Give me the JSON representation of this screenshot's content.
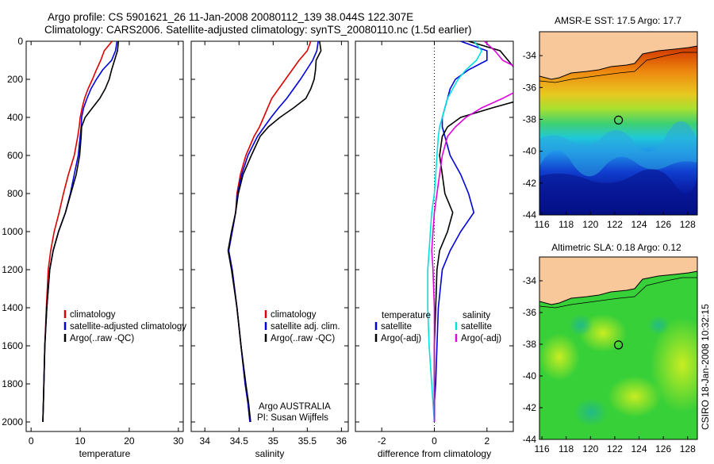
{
  "title_line1": "Argo profile: CS 5901621_26 11-Jan-2008 20080112_139 38.044S 122.307E",
  "title_line2": "Climatology: CARS2006. Satellite-adjusted climatology: synTS_20080110.nc (1.5d earlier)",
  "credit_agency": "Argo AUSTRALIA",
  "credit_pi": "PI: Susan Wijffels",
  "side_stamp": "CSIRO 18-Jan-2008 10:32:15",
  "colors": {
    "climatology": "#dd0000",
    "satellite": "#0000dd",
    "argo": "#000000",
    "satellite_diff": "#00e0e0",
    "argo_adj_diff": "#e000e0",
    "land": "#f8c79a"
  },
  "chart_data": [
    {
      "type": "line",
      "id": "temperature",
      "xlabel": "temperature",
      "ylabel": "",
      "xlim": [
        -1,
        31
      ],
      "ylim": [
        2050,
        0
      ],
      "xticks": [
        0,
        10,
        20,
        30
      ],
      "yticks": [
        0,
        200,
        400,
        600,
        800,
        1000,
        1200,
        1400,
        1600,
        1800,
        2000
      ],
      "legend": [
        "climatology",
        "satellite-adjusted climatology",
        "Argo(..raw -QC)"
      ],
      "series": [
        {
          "name": "climatology",
          "color": "#dd0000",
          "x": [
            16.5,
            14.9,
            14.2,
            13.3,
            12.5,
            11.6,
            10.9,
            10.4,
            10.0,
            9.8,
            9.5,
            8.8,
            7.6,
            6.6,
            5.7,
            4.7,
            4.0,
            3.5,
            3.1,
            2.8,
            2.6,
            2.5,
            2.4
          ],
          "y": [
            0,
            50,
            100,
            150,
            200,
            250,
            300,
            350,
            400,
            450,
            500,
            600,
            700,
            800,
            900,
            1000,
            1100,
            1200,
            1400,
            1600,
            1800,
            1900,
            2000
          ]
        },
        {
          "name": "satellite-adjusted climatology",
          "color": "#0000dd",
          "x": [
            17.5,
            17.2,
            16.4,
            14.6,
            13.3,
            12.2,
            11.4,
            10.7,
            10.3,
            10.2,
            10.0,
            9.6,
            8.8,
            8.0,
            7.0,
            5.6,
            4.5,
            3.8,
            3.2,
            2.8,
            2.6,
            2.5,
            2.4
          ],
          "y": [
            0,
            50,
            100,
            150,
            200,
            250,
            300,
            350,
            400,
            450,
            500,
            600,
            700,
            800,
            900,
            1000,
            1100,
            1200,
            1400,
            1600,
            1800,
            1900,
            2000
          ]
        },
        {
          "name": "Argo(..raw -QC)",
          "color": "#000000",
          "x": [
            17.8,
            17.6,
            17.0,
            16.4,
            15.9,
            15.1,
            14.0,
            12.5,
            11.0,
            10.3,
            10.2,
            9.9,
            9.2,
            8.1,
            7.0,
            5.6,
            4.5,
            3.8,
            3.2,
            2.8,
            2.6,
            2.5,
            2.4
          ],
          "y": [
            0,
            50,
            100,
            150,
            200,
            250,
            300,
            350,
            400,
            450,
            500,
            600,
            700,
            800,
            900,
            1000,
            1100,
            1200,
            1400,
            1600,
            1800,
            1900,
            2000
          ]
        }
      ]
    },
    {
      "type": "line",
      "id": "salinity",
      "xlabel": "salinity",
      "ylabel": "",
      "xlim": [
        33.8,
        36.1
      ],
      "ylim": [
        2050,
        0
      ],
      "xticks": [
        34,
        34.5,
        35,
        35.5,
        36
      ],
      "yticks": [
        0,
        200,
        400,
        600,
        800,
        1000,
        1200,
        1400,
        1600,
        1800,
        2000
      ],
      "legend": [
        "climatology",
        "satellite adj. clim.",
        "Argo(..raw -QC)"
      ],
      "series": [
        {
          "name": "climatology",
          "color": "#dd0000",
          "x": [
            35.55,
            35.5,
            35.38,
            35.28,
            35.18,
            35.08,
            34.98,
            34.92,
            34.86,
            34.8,
            34.72,
            34.6,
            34.52,
            34.47,
            34.45,
            34.4,
            34.35,
            34.4,
            34.47,
            34.53,
            34.59,
            34.63,
            34.66
          ],
          "y": [
            0,
            50,
            100,
            150,
            200,
            250,
            300,
            350,
            400,
            450,
            500,
            600,
            700,
            800,
            900,
            1000,
            1100,
            1200,
            1400,
            1600,
            1800,
            1900,
            2000
          ]
        },
        {
          "name": "satellite adj. clim.",
          "color": "#0000dd",
          "x": [
            35.66,
            35.64,
            35.58,
            35.49,
            35.4,
            35.3,
            35.2,
            35.08,
            34.97,
            34.87,
            34.77,
            34.63,
            34.54,
            34.48,
            34.45,
            34.4,
            34.35,
            34.4,
            34.47,
            34.53,
            34.59,
            34.63,
            34.66
          ],
          "y": [
            0,
            50,
            100,
            150,
            200,
            250,
            300,
            350,
            400,
            450,
            500,
            600,
            700,
            800,
            900,
            1000,
            1100,
            1200,
            1400,
            1600,
            1800,
            1900,
            2000
          ]
        },
        {
          "name": "Argo(..raw -QC)",
          "color": "#000000",
          "x": [
            35.68,
            35.7,
            35.63,
            35.62,
            35.6,
            35.55,
            35.48,
            35.3,
            35.1,
            34.93,
            34.81,
            34.68,
            34.56,
            34.49,
            34.45,
            34.39,
            34.34,
            34.39,
            34.47,
            34.53,
            34.6,
            34.64,
            34.67
          ],
          "y": [
            0,
            50,
            100,
            150,
            200,
            250,
            300,
            350,
            400,
            450,
            500,
            600,
            700,
            800,
            900,
            1000,
            1100,
            1200,
            1400,
            1600,
            1800,
            1900,
            2000
          ]
        }
      ]
    },
    {
      "type": "line",
      "id": "difference",
      "xlabel": "difference from climatology",
      "ylabel": "",
      "xlim": [
        -3,
        3
      ],
      "ylim": [
        2050,
        0
      ],
      "xticks": [
        -2,
        0,
        2
      ],
      "yticks": [
        0,
        200,
        400,
        600,
        800,
        1000,
        1200,
        1400,
        1600,
        1800,
        2000
      ],
      "legend_headers": [
        "temperature",
        "salinity"
      ],
      "legend": [
        "satellite",
        "Argo(-adj)",
        "satellite",
        "Argo(-adj)"
      ],
      "series": [
        {
          "name": "satellite",
          "group": "temperature",
          "color": "#0000dd",
          "x": [
            1.0,
            2.0,
            2.0,
            1.3,
            0.8,
            0.6,
            0.5,
            0.4,
            0.3,
            0.3,
            0.4,
            0.6,
            1.0,
            1.3,
            1.5,
            1.0,
            0.6,
            0.3,
            0.15,
            0.1,
            0.05,
            0.0,
            0.0
          ],
          "y": [
            0,
            50,
            100,
            150,
            200,
            250,
            300,
            350,
            400,
            450,
            500,
            600,
            700,
            800,
            900,
            1000,
            1100,
            1200,
            1400,
            1600,
            1800,
            1900,
            2000
          ]
        },
        {
          "name": "Argo(-adj)",
          "group": "temperature",
          "color": "#000000",
          "x": [
            1.3,
            2.5,
            2.8,
            3.1,
            3.4,
            3.6,
            3.5,
            2.2,
            1.0,
            0.5,
            0.3,
            0.2,
            0.3,
            0.4,
            0.7,
            0.5,
            0.2,
            0.1,
            0.05,
            0.0,
            0.0,
            0.0,
            0.0
          ],
          "y": [
            0,
            50,
            100,
            150,
            200,
            250,
            300,
            350,
            400,
            450,
            500,
            600,
            700,
            800,
            900,
            1000,
            1100,
            1200,
            1400,
            1600,
            1800,
            1900,
            2000
          ]
        },
        {
          "name": "satellite",
          "group": "salinity",
          "color": "#00e0e0",
          "x": [
            1.5,
            1.8,
            1.6,
            1.2,
            0.9,
            0.7,
            0.5,
            0.4,
            0.3,
            0.2,
            0.15,
            0.1,
            0.05,
            0.0,
            -0.1,
            -0.15,
            -0.2,
            -0.25,
            -0.25,
            -0.2,
            -0.1,
            -0.05,
            0.0
          ],
          "y": [
            0,
            50,
            100,
            150,
            200,
            250,
            300,
            350,
            400,
            450,
            500,
            600,
            700,
            800,
            900,
            1000,
            1100,
            1200,
            1400,
            1600,
            1800,
            1900,
            2000
          ]
        },
        {
          "name": "Argo(-adj)",
          "group": "salinity",
          "color": "#e000e0",
          "x": [
            1.9,
            2.3,
            2.6,
            3.3,
            3.5,
            3.3,
            2.6,
            1.8,
            1.2,
            0.8,
            0.5,
            0.3,
            0.2,
            0.1,
            0.0,
            -0.05,
            -0.1,
            -0.05,
            0.0,
            0.0,
            0.0,
            0.0,
            0.0
          ],
          "y": [
            0,
            50,
            100,
            150,
            200,
            250,
            300,
            350,
            400,
            450,
            500,
            600,
            700,
            800,
            900,
            1000,
            1100,
            1200,
            1400,
            1600,
            1800,
            1900,
            2000
          ]
        }
      ]
    },
    {
      "type": "heatmap",
      "id": "sst-map",
      "title": "AMSR-E SST: 17.5 Argo: 17.7",
      "xlim": [
        115.8,
        128.8
      ],
      "ylim": [
        -44,
        -32.5
      ],
      "xticks": [
        116,
        118,
        120,
        122,
        124,
        126,
        128
      ],
      "yticks": [
        -34,
        -36,
        -38,
        -40,
        -42,
        -44
      ],
      "float_position": {
        "lon": 122.307,
        "lat": -38.044
      }
    },
    {
      "type": "heatmap",
      "id": "sla-map",
      "title": "Altimetric SLA: 0.18 Argo: 0.12",
      "xlim": [
        115.8,
        128.8
      ],
      "ylim": [
        -44,
        -32.5
      ],
      "xticks": [
        116,
        118,
        120,
        122,
        124,
        126,
        128
      ],
      "yticks": [
        -34,
        -36,
        -38,
        -40,
        -42,
        -44
      ],
      "float_position": {
        "lon": 122.307,
        "lat": -38.044
      }
    }
  ]
}
